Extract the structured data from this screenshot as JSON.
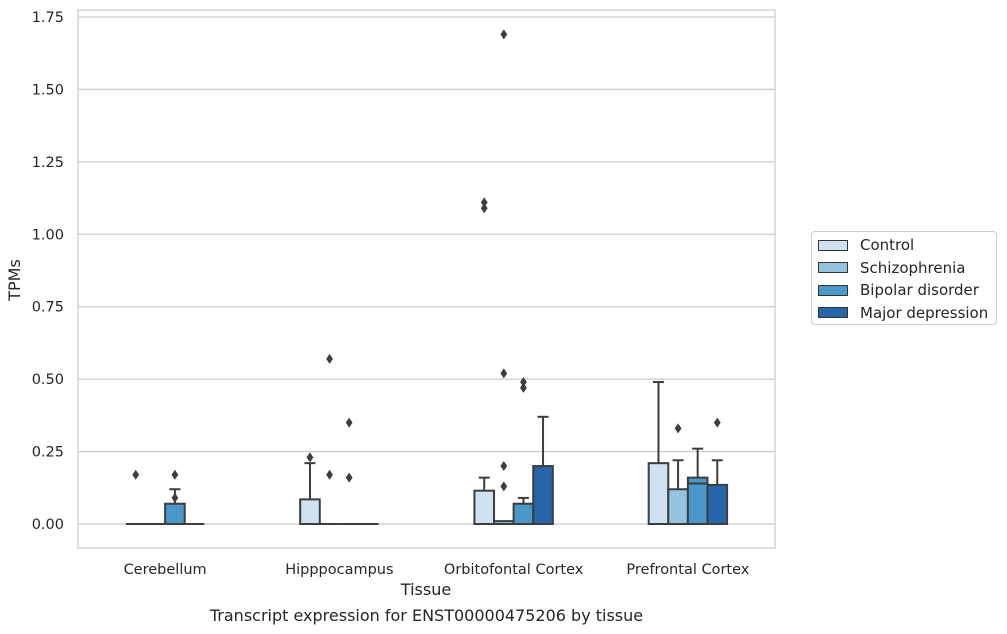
{
  "caption": "Transcript expression for ENST00000475206 by tissue",
  "chart_data": {
    "type": "box",
    "xlabel": "Tissue",
    "ylabel": "TPMs",
    "ylim": [
      -0.08,
      1.77
    ],
    "yticks": [
      "0.00",
      "0.25",
      "0.50",
      "0.75",
      "1.00",
      "1.25",
      "1.50",
      "1.75"
    ],
    "ytick_values": [
      0,
      0.25,
      0.5,
      0.75,
      1.0,
      1.25,
      1.5,
      1.75
    ],
    "grid": "horizontal",
    "legend_position": "right, outside",
    "categories": [
      "Cerebellum",
      "Hipppocampus",
      "Orbitofontal Cortex",
      "Prefrontal Cortex"
    ],
    "series": [
      {
        "name": "Control",
        "color": "#d0e1f2",
        "boxes": [
          {
            "q1": 0,
            "median": 0,
            "q3": 0,
            "whisker_low": 0,
            "whisker_high": 0,
            "outliers": [
              0.17
            ]
          },
          {
            "q1": 0,
            "median": 0,
            "q3": 0.085,
            "whisker_low": 0,
            "whisker_high": 0.21,
            "outliers": [
              0.23
            ]
          },
          {
            "q1": 0,
            "median": 0,
            "q3": 0.115,
            "whisker_low": 0,
            "whisker_high": 0.16,
            "outliers": [
              1.09,
              1.11
            ]
          },
          {
            "q1": 0,
            "median": 0,
            "q3": 0.21,
            "whisker_low": 0,
            "whisker_high": 0.49,
            "outliers": []
          }
        ]
      },
      {
        "name": "Schizophrenia",
        "color": "#94c4df",
        "boxes": [
          {
            "q1": 0,
            "median": 0,
            "q3": 0,
            "whisker_low": 0,
            "whisker_high": 0,
            "outliers": []
          },
          {
            "q1": 0,
            "median": 0,
            "q3": 0,
            "whisker_low": 0,
            "whisker_high": 0,
            "outliers": [
              0.57,
              0.17
            ]
          },
          {
            "q1": 0,
            "median": 0,
            "q3": 0.01,
            "whisker_low": 0,
            "whisker_high": 0.01,
            "outliers": [
              0.52,
              0.2,
              0.13,
              1.69
            ]
          },
          {
            "q1": 0,
            "median": 0,
            "q3": 0.12,
            "whisker_low": 0,
            "whisker_high": 0.22,
            "outliers": [
              0.33
            ]
          }
        ]
      },
      {
        "name": "Bipolar disorder",
        "color": "#4a98c9",
        "boxes": [
          {
            "q1": 0,
            "median": 0,
            "q3": 0.07,
            "whisker_low": 0,
            "whisker_high": 0.12,
            "outliers": [
              0.17,
              0.09
            ]
          },
          {
            "q1": 0,
            "median": 0,
            "q3": 0,
            "whisker_low": 0,
            "whisker_high": 0,
            "outliers": [
              0.35,
              0.16
            ]
          },
          {
            "q1": 0,
            "median": 0,
            "q3": 0.07,
            "whisker_low": 0,
            "whisker_high": 0.09,
            "outliers": [
              0.49,
              0.47
            ]
          },
          {
            "q1": 0,
            "median": 0.14,
            "q3": 0.16,
            "whisker_low": 0,
            "whisker_high": 0.26,
            "outliers": []
          }
        ]
      },
      {
        "name": "Major depression",
        "color": "#2666a8",
        "boxes": [
          {
            "q1": 0,
            "median": 0,
            "q3": 0,
            "whisker_low": 0,
            "whisker_high": 0,
            "outliers": []
          },
          {
            "q1": 0,
            "median": 0,
            "q3": 0,
            "whisker_low": 0,
            "whisker_high": 0,
            "outliers": []
          },
          {
            "q1": 0,
            "median": 0,
            "q3": 0.2,
            "whisker_low": 0,
            "whisker_high": 0.37,
            "outliers": []
          },
          {
            "q1": 0,
            "median": 0,
            "q3": 0.135,
            "whisker_low": 0,
            "whisker_high": 0.22,
            "outliers": [
              0.35
            ]
          }
        ]
      }
    ]
  }
}
